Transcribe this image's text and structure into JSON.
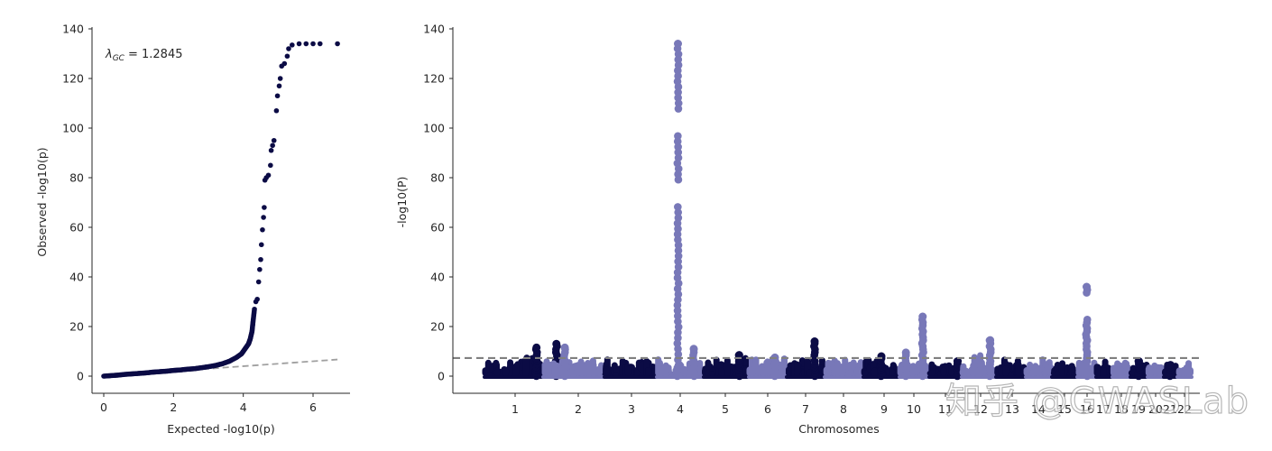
{
  "chart_data": [
    {
      "type": "scatter",
      "subtype": "qq-plot",
      "xlabel": "Expected -log10(p)",
      "ylabel": "Observed -log10(p)",
      "annotation": "λGC = 1.2845",
      "annotation_parts": {
        "symbol": "λ",
        "subscript": "GC",
        "value": "= 1.2845"
      },
      "xlim": [
        -0.3,
        7.0
      ],
      "ylim": [
        -7,
        140
      ],
      "xticks": [
        0,
        2,
        4,
        6
      ],
      "yticks": [
        0,
        20,
        40,
        60,
        80,
        100,
        120,
        140
      ],
      "grid": false,
      "point_color": "#0b0b45",
      "reference_line": {
        "style": "dashed",
        "color": "#a0a0a0",
        "from": [
          0,
          0
        ],
        "to": [
          6.7,
          6.7
        ]
      },
      "points": [
        [
          0.0,
          0.0
        ],
        [
          0.2,
          0.2
        ],
        [
          0.4,
          0.4
        ],
        [
          0.6,
          0.7
        ],
        [
          0.8,
          0.9
        ],
        [
          1.0,
          1.1
        ],
        [
          1.2,
          1.3
        ],
        [
          1.4,
          1.6
        ],
        [
          1.6,
          1.8
        ],
        [
          1.8,
          2.0
        ],
        [
          2.0,
          2.3
        ],
        [
          2.2,
          2.5
        ],
        [
          2.4,
          2.8
        ],
        [
          2.6,
          3.0
        ],
        [
          2.8,
          3.4
        ],
        [
          3.0,
          3.8
        ],
        [
          3.2,
          4.3
        ],
        [
          3.4,
          5.0
        ],
        [
          3.6,
          6.0
        ],
        [
          3.8,
          7.5
        ],
        [
          3.95,
          9.0
        ],
        [
          4.05,
          11.0
        ],
        [
          4.15,
          13.0
        ],
        [
          4.2,
          15.0
        ],
        [
          4.25,
          18.0
        ],
        [
          4.28,
          22.0
        ],
        [
          4.32,
          27.0
        ],
        [
          4.36,
          30.0
        ],
        [
          4.4,
          31.0
        ],
        [
          4.44,
          38.0
        ],
        [
          4.47,
          43.0
        ],
        [
          4.5,
          47.0
        ],
        [
          4.52,
          53.0
        ],
        [
          4.55,
          59.0
        ],
        [
          4.58,
          64.0
        ],
        [
          4.6,
          68.0
        ],
        [
          4.62,
          79.0
        ],
        [
          4.66,
          80.0
        ],
        [
          4.72,
          81.0
        ],
        [
          4.78,
          85.0
        ],
        [
          4.8,
          91.0
        ],
        [
          4.84,
          93.0
        ],
        [
          4.88,
          95.0
        ],
        [
          4.95,
          107.0
        ],
        [
          4.98,
          113.0
        ],
        [
          5.03,
          117.0
        ],
        [
          5.06,
          120.0
        ],
        [
          5.1,
          125.0
        ],
        [
          5.18,
          126.0
        ],
        [
          5.26,
          129.0
        ],
        [
          5.3,
          132.0
        ],
        [
          5.4,
          133.5
        ],
        [
          5.6,
          134.0
        ],
        [
          5.8,
          134.0
        ],
        [
          6.0,
          134.0
        ],
        [
          6.2,
          134.0
        ],
        [
          6.7,
          134.0
        ]
      ]
    },
    {
      "type": "scatter",
      "subtype": "manhattan-plot",
      "xlabel": "Chromosomes",
      "ylabel": "-log10(P)",
      "ylim": [
        -7,
        140
      ],
      "yticks": [
        0,
        20,
        40,
        60,
        80,
        100,
        120,
        140
      ],
      "categories": [
        "1",
        "2",
        "3",
        "4",
        "5",
        "6",
        "7",
        "8",
        "9",
        "10",
        "11",
        "12",
        "13",
        "14",
        "15",
        "16",
        "17",
        "18",
        "19",
        "20",
        "21",
        "22"
      ],
      "threshold_line": {
        "value": 7.3,
        "style": "dashed",
        "color": "#808080"
      },
      "grid": false,
      "colors": {
        "odd": "#0b0b45",
        "even": "#7878b8"
      },
      "series": [
        {
          "chromosome": "1",
          "baseline_max": 6,
          "peaks": [
            {
              "pos": 0.9,
              "value": 11.5
            },
            {
              "pos": 1.25,
              "value": 13
            }
          ]
        },
        {
          "chromosome": "2",
          "baseline_max": 5,
          "peaks": [
            {
              "pos": 0.35,
              "value": 11.5
            }
          ]
        },
        {
          "chromosome": "3",
          "baseline_max": 6,
          "peaks": []
        },
        {
          "chromosome": "4",
          "baseline_max": 5,
          "peaks": [
            {
              "pos": 0.45,
              "value": 134
            },
            {
              "pos": 0.8,
              "value": 11
            }
          ]
        },
        {
          "chromosome": "5",
          "baseline_max": 6,
          "peaks": [
            {
              "pos": 0.8,
              "value": 8.5
            }
          ]
        },
        {
          "chromosome": "6",
          "baseline_max": 6,
          "peaks": [
            {
              "pos": 0.7,
              "value": 7.5
            }
          ]
        },
        {
          "chromosome": "7",
          "baseline_max": 5,
          "peaks": [
            {
              "pos": 0.75,
              "value": 14
            }
          ]
        },
        {
          "chromosome": "8",
          "baseline_max": 5,
          "peaks": []
        },
        {
          "chromosome": "9",
          "baseline_max": 5,
          "peaks": [
            {
              "pos": 0.5,
              "value": 8
            }
          ]
        },
        {
          "chromosome": "10",
          "baseline_max": 5,
          "peaks": [
            {
              "pos": 0.2,
              "value": 9.5
            },
            {
              "pos": 0.8,
              "value": 24
            }
          ]
        },
        {
          "chromosome": "11",
          "baseline_max": 5,
          "peaks": [
            {
              "pos": 0.9,
              "value": 6
            }
          ]
        },
        {
          "chromosome": "12",
          "baseline_max": 6,
          "peaks": [
            {
              "pos": 0.85,
              "value": 14.5
            }
          ]
        },
        {
          "chromosome": "13",
          "baseline_max": 5,
          "peaks": []
        },
        {
          "chromosome": "14",
          "baseline_max": 5,
          "peaks": []
        },
        {
          "chromosome": "15",
          "baseline_max": 5,
          "peaks": []
        },
        {
          "chromosome": "16",
          "baseline_max": 5,
          "peaks": [
            {
              "pos": 0.5,
              "value": 36
            }
          ]
        },
        {
          "chromosome": "17",
          "baseline_max": 5,
          "peaks": []
        },
        {
          "chromosome": "18",
          "baseline_max": 4,
          "peaks": []
        },
        {
          "chromosome": "19",
          "baseline_max": 4,
          "peaks": [
            {
              "pos": 0.5,
              "value": 6
            }
          ]
        },
        {
          "chromosome": "20",
          "baseline_max": 4,
          "peaks": []
        },
        {
          "chromosome": "21",
          "baseline_max": 4,
          "peaks": [
            {
              "pos": 0.5,
              "value": 4.5
            }
          ]
        },
        {
          "chromosome": "22",
          "baseline_max": 4,
          "peaks": []
        }
      ]
    }
  ],
  "qq": {
    "xlabel": "Expected -log10(p)",
    "ylabel": "Observed -log10(p)",
    "annotation_value": "= 1.2845",
    "annotation_symbol": "λ",
    "annotation_sub": "GC",
    "xtick_labels": [
      "0",
      "2",
      "4",
      "6"
    ],
    "ytick_labels": [
      "0",
      "20",
      "40",
      "60",
      "80",
      "100",
      "120",
      "140"
    ]
  },
  "manhattan": {
    "xlabel": "Chromosomes",
    "ylabel": "-log10(P)",
    "ytick_labels": [
      "0",
      "20",
      "40",
      "60",
      "80",
      "100",
      "120",
      "140"
    ],
    "xtick_labels": [
      "1",
      "2",
      "3",
      "4",
      "5",
      "6",
      "7",
      "8",
      "9",
      "10",
      "11",
      "12",
      "13",
      "14",
      "15",
      "16",
      "17",
      "18",
      "19",
      "20",
      "21",
      "22"
    ]
  },
  "watermark": "知乎 @GWASLab"
}
